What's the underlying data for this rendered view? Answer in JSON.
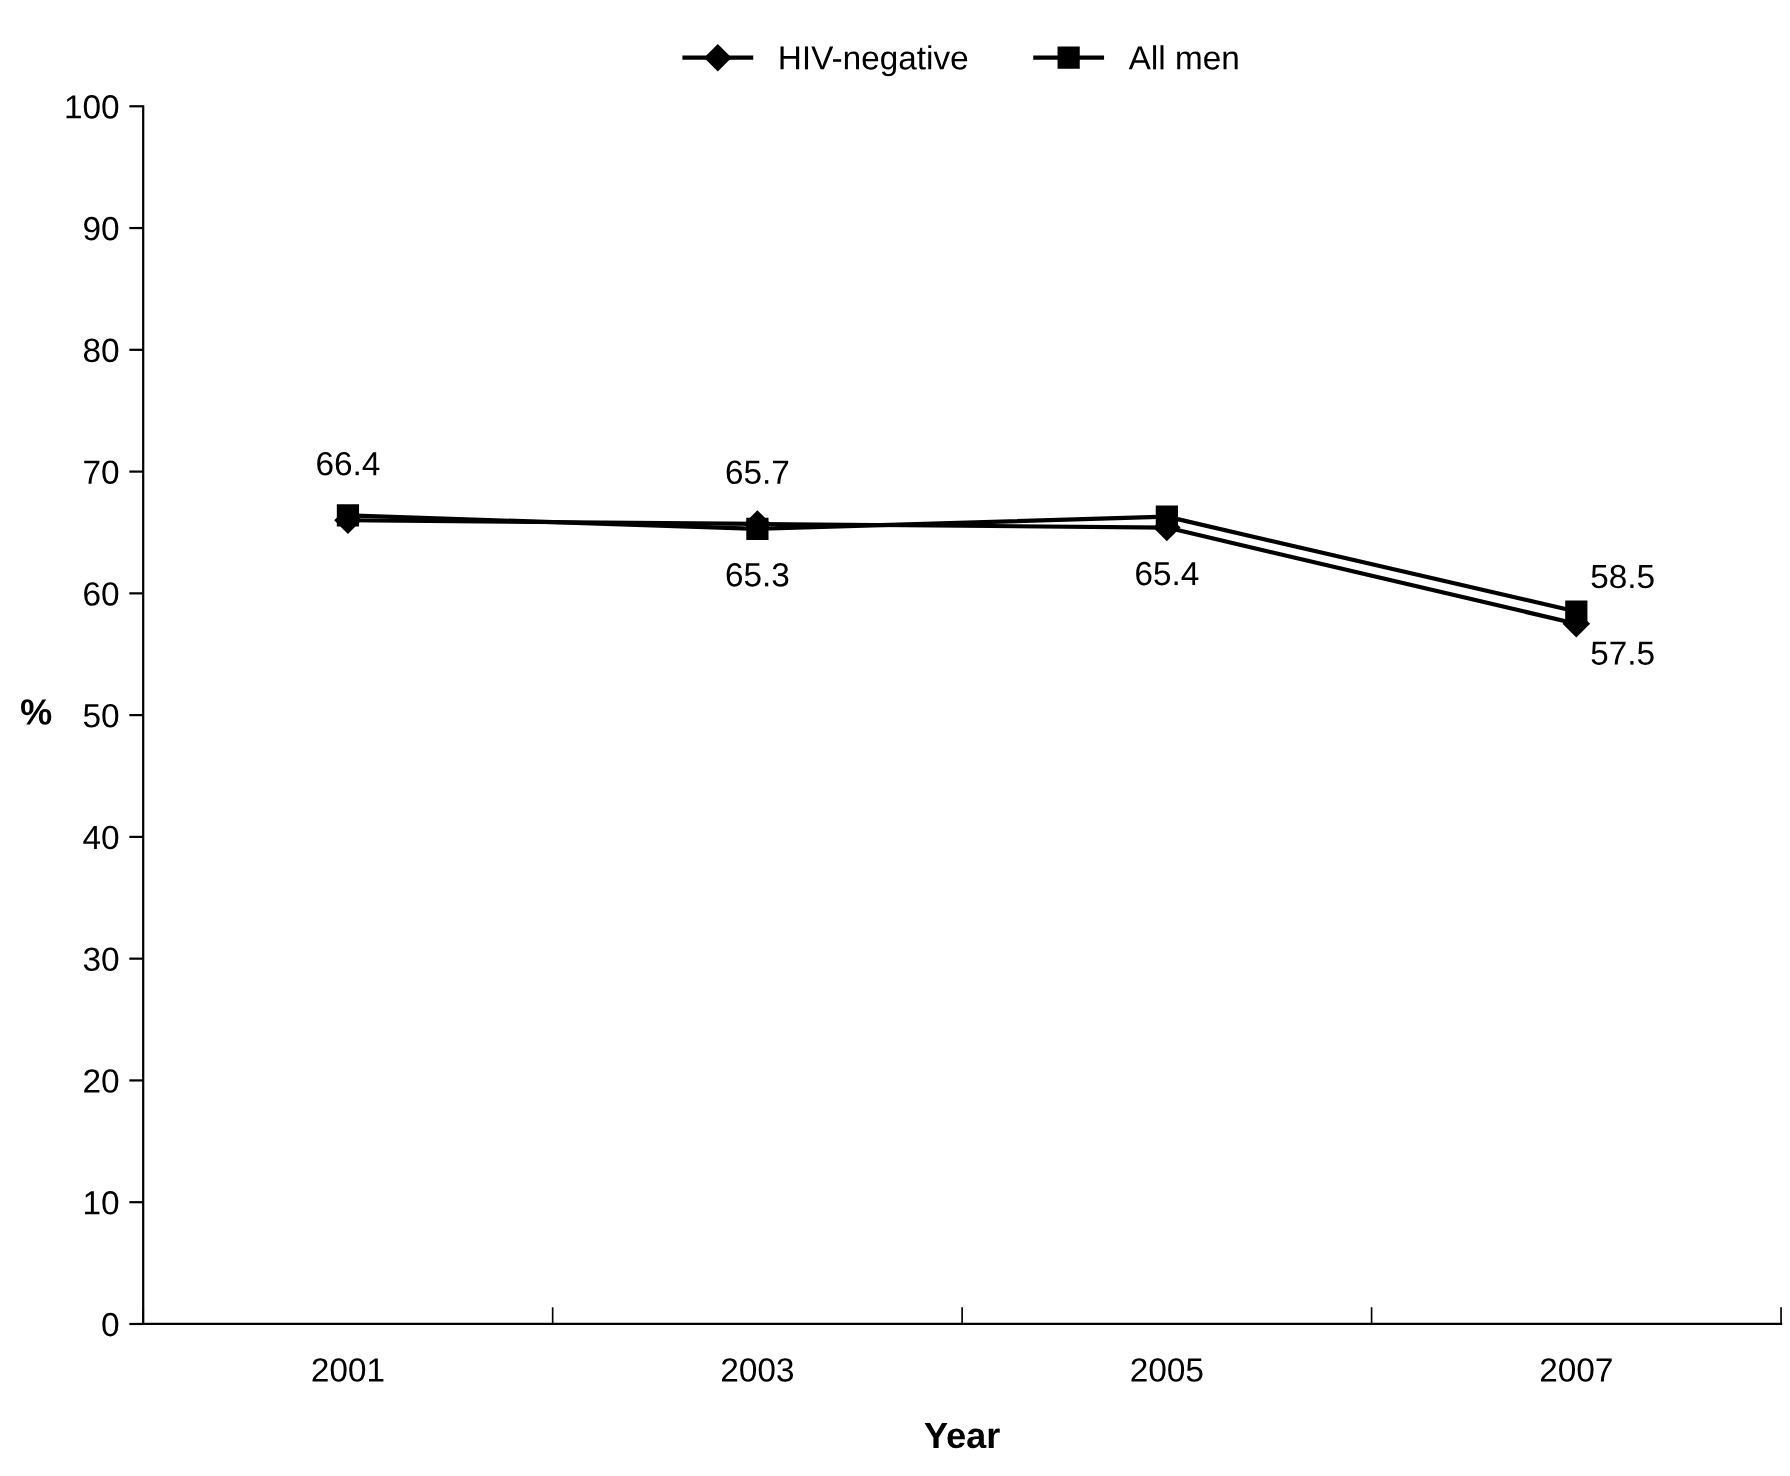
{
  "chart_data": {
    "type": "line",
    "xlabel": "Year",
    "ylabel": "%",
    "categories": [
      "2001",
      "2003",
      "2005",
      "2007"
    ],
    "series": [
      {
        "name": "HIV-negative",
        "color": "#000000",
        "marker": "diamond",
        "values": [
          66.0,
          65.7,
          65.4,
          57.5
        ],
        "value_labels": [
          null,
          "65.7",
          "65.4",
          "57.5"
        ]
      },
      {
        "name": "All men",
        "color": "#000000",
        "marker": "square",
        "values": [
          66.4,
          65.3,
          66.3,
          58.5
        ],
        "value_labels": [
          "66.4",
          "65.3",
          null,
          "58.5"
        ]
      }
    ],
    "ylim": [
      0,
      100
    ],
    "yticks": [
      0,
      10,
      20,
      30,
      40,
      50,
      60,
      70,
      80,
      90,
      100
    ],
    "grid": false,
    "legend": "top",
    "line_style": "solid"
  }
}
